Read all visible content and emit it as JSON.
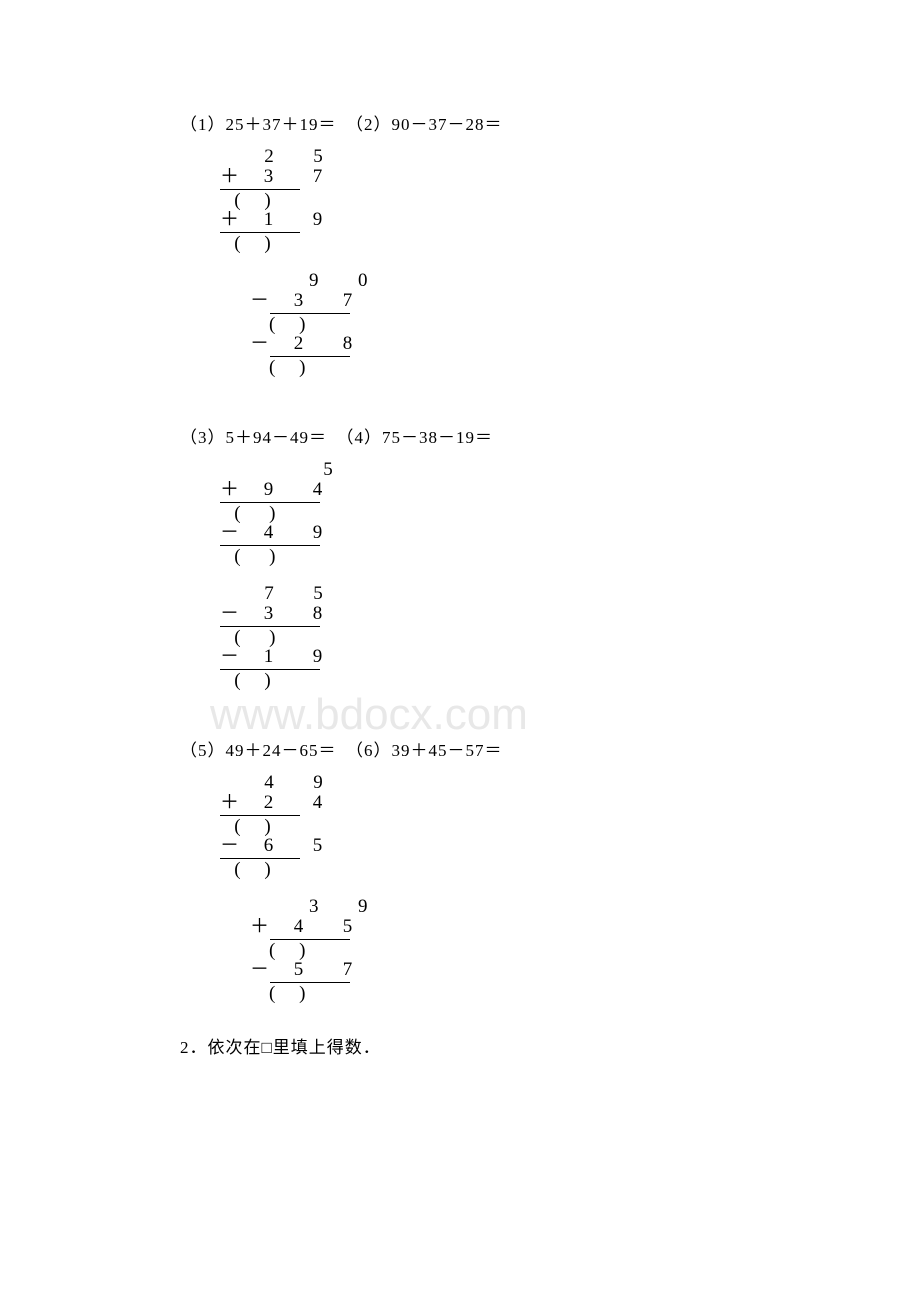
{
  "watermark": "www.bdocx.com",
  "problems": {
    "line1": "（1）25＋37＋19＝　（2）90－37－28＝",
    "line2": "（3）5＋94－49＝　（4）75－38－19＝",
    "line3": "（5）49＋24－65＝　（6）39＋45－57＝"
  },
  "calc1a": {
    "r1": "   2  5",
    "r2": "＋ 3  7",
    "r3": "   (     )",
    "r4": "＋ 1  9",
    "r5": "   (     )"
  },
  "calc1b": {
    "r1": "    9  0",
    "r2": "－ 3  7",
    "r3": "    (     )",
    "r4": "－ 2  8",
    "r5": "    (     )"
  },
  "calc2a": {
    "r1": "       5",
    "r2": "＋ 9  4",
    "r3": "   (      )",
    "r4": "－ 4  9",
    "r5": "   (      )"
  },
  "calc2b": {
    "r1": "   7  5",
    "r2": "－ 3  8",
    "r3": "   (      )",
    "r4": "－ 1  9",
    "r5": "   (     )"
  },
  "calc3a": {
    "r1": "   4  9",
    "r2": "＋ 2  4",
    "r3": "   (     )",
    "r4": "－ 6  5",
    "r5": "   (     )"
  },
  "calc3b": {
    "r1": "    3  9",
    "r2": "＋ 4  5",
    "r3": "    (     )",
    "r4": "－ 5  7",
    "r5": "    (     )"
  },
  "question2": "2．依次在□里填上得数．"
}
